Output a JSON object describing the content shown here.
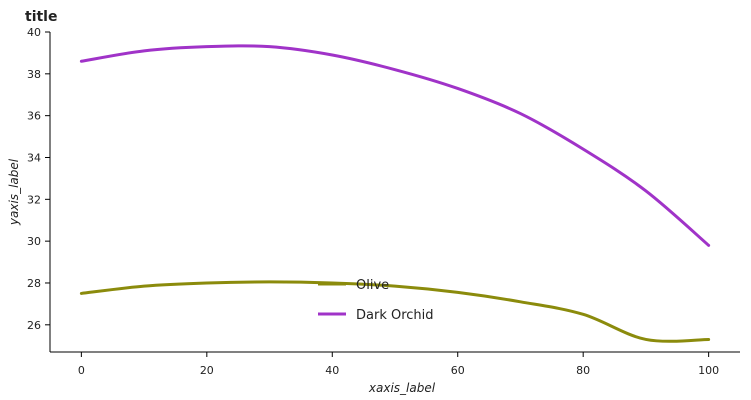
{
  "chart_data": {
    "type": "line",
    "title": "title",
    "xlabel": "xaxis_label",
    "ylabel": "yaxis_label",
    "xlim": [
      -5,
      105
    ],
    "ylim": [
      24.7,
      40
    ],
    "x_ticks": [
      0,
      20,
      40,
      60,
      80,
      100
    ],
    "y_ticks": [
      26,
      28,
      30,
      32,
      34,
      36,
      38,
      40
    ],
    "grid": false,
    "legend_position": "center",
    "series": [
      {
        "name": "Olive",
        "color": "#8b8b0c",
        "x": [
          0,
          10,
          20,
          30,
          40,
          50,
          60,
          70,
          80,
          90,
          100
        ],
        "y": [
          27.5,
          27.85,
          28.0,
          28.05,
          28.0,
          27.85,
          27.55,
          27.1,
          26.5,
          25.3,
          25.3
        ]
      },
      {
        "name": "Dark Orchid",
        "color": "#a033c8",
        "x": [
          0,
          10,
          20,
          30,
          40,
          50,
          60,
          70,
          80,
          90,
          100
        ],
        "y": [
          38.6,
          39.1,
          39.3,
          39.3,
          38.9,
          38.2,
          37.3,
          36.1,
          34.4,
          32.4,
          29.8
        ]
      }
    ]
  }
}
